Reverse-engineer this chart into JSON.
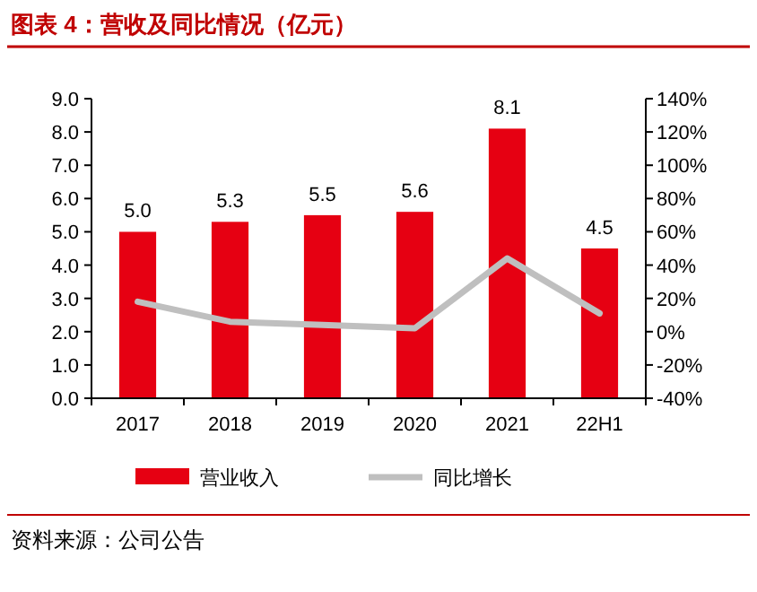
{
  "chart_data": {
    "type": "bar",
    "title": "图表 4：营收及同比情况（亿元）",
    "categories": [
      "2017",
      "2018",
      "2019",
      "2020",
      "2021",
      "22H1"
    ],
    "series": [
      {
        "name": "营业收入",
        "color": "#e60012",
        "values": [
          5.0,
          5.3,
          5.5,
          5.6,
          8.1,
          4.5
        ]
      },
      {
        "name": "同比增长",
        "type": "line",
        "axis": "y2",
        "color": "#bfbfbf",
        "values": [
          18,
          6,
          4,
          2,
          44,
          11
        ]
      }
    ],
    "ylim": [
      0,
      9
    ],
    "yticks": [
      {
        "value": 0,
        "label": "0.0"
      },
      {
        "value": 1,
        "label": "1.0"
      },
      {
        "value": 2,
        "label": "2.0"
      },
      {
        "value": 3,
        "label": "3.0"
      },
      {
        "value": 4,
        "label": "4.0"
      },
      {
        "value": 5,
        "label": "5.0"
      },
      {
        "value": 6,
        "label": "6.0"
      },
      {
        "value": 7,
        "label": "7.0"
      },
      {
        "value": 8,
        "label": "8.0"
      },
      {
        "value": 9,
        "label": "9.0"
      }
    ],
    "y2lim": [
      -40,
      140
    ],
    "y2ticks": [
      {
        "value": -40,
        "label": "-40%"
      },
      {
        "value": -20,
        "label": "-20%"
      },
      {
        "value": 0,
        "label": "0%"
      },
      {
        "value": 20,
        "label": "20%"
      },
      {
        "value": 40,
        "label": "40%"
      },
      {
        "value": 60,
        "label": "60%"
      },
      {
        "value": 80,
        "label": "80%"
      },
      {
        "value": 100,
        "label": "100%"
      },
      {
        "value": 120,
        "label": "120%"
      },
      {
        "value": 140,
        "label": "140%"
      }
    ],
    "value_labels": [
      "5.0",
      "5.3",
      "5.5",
      "5.6",
      "8.1",
      "4.5"
    ],
    "legend": "bottom",
    "grid": false,
    "annotations": [
      "资料来源：公司公告"
    ]
  }
}
